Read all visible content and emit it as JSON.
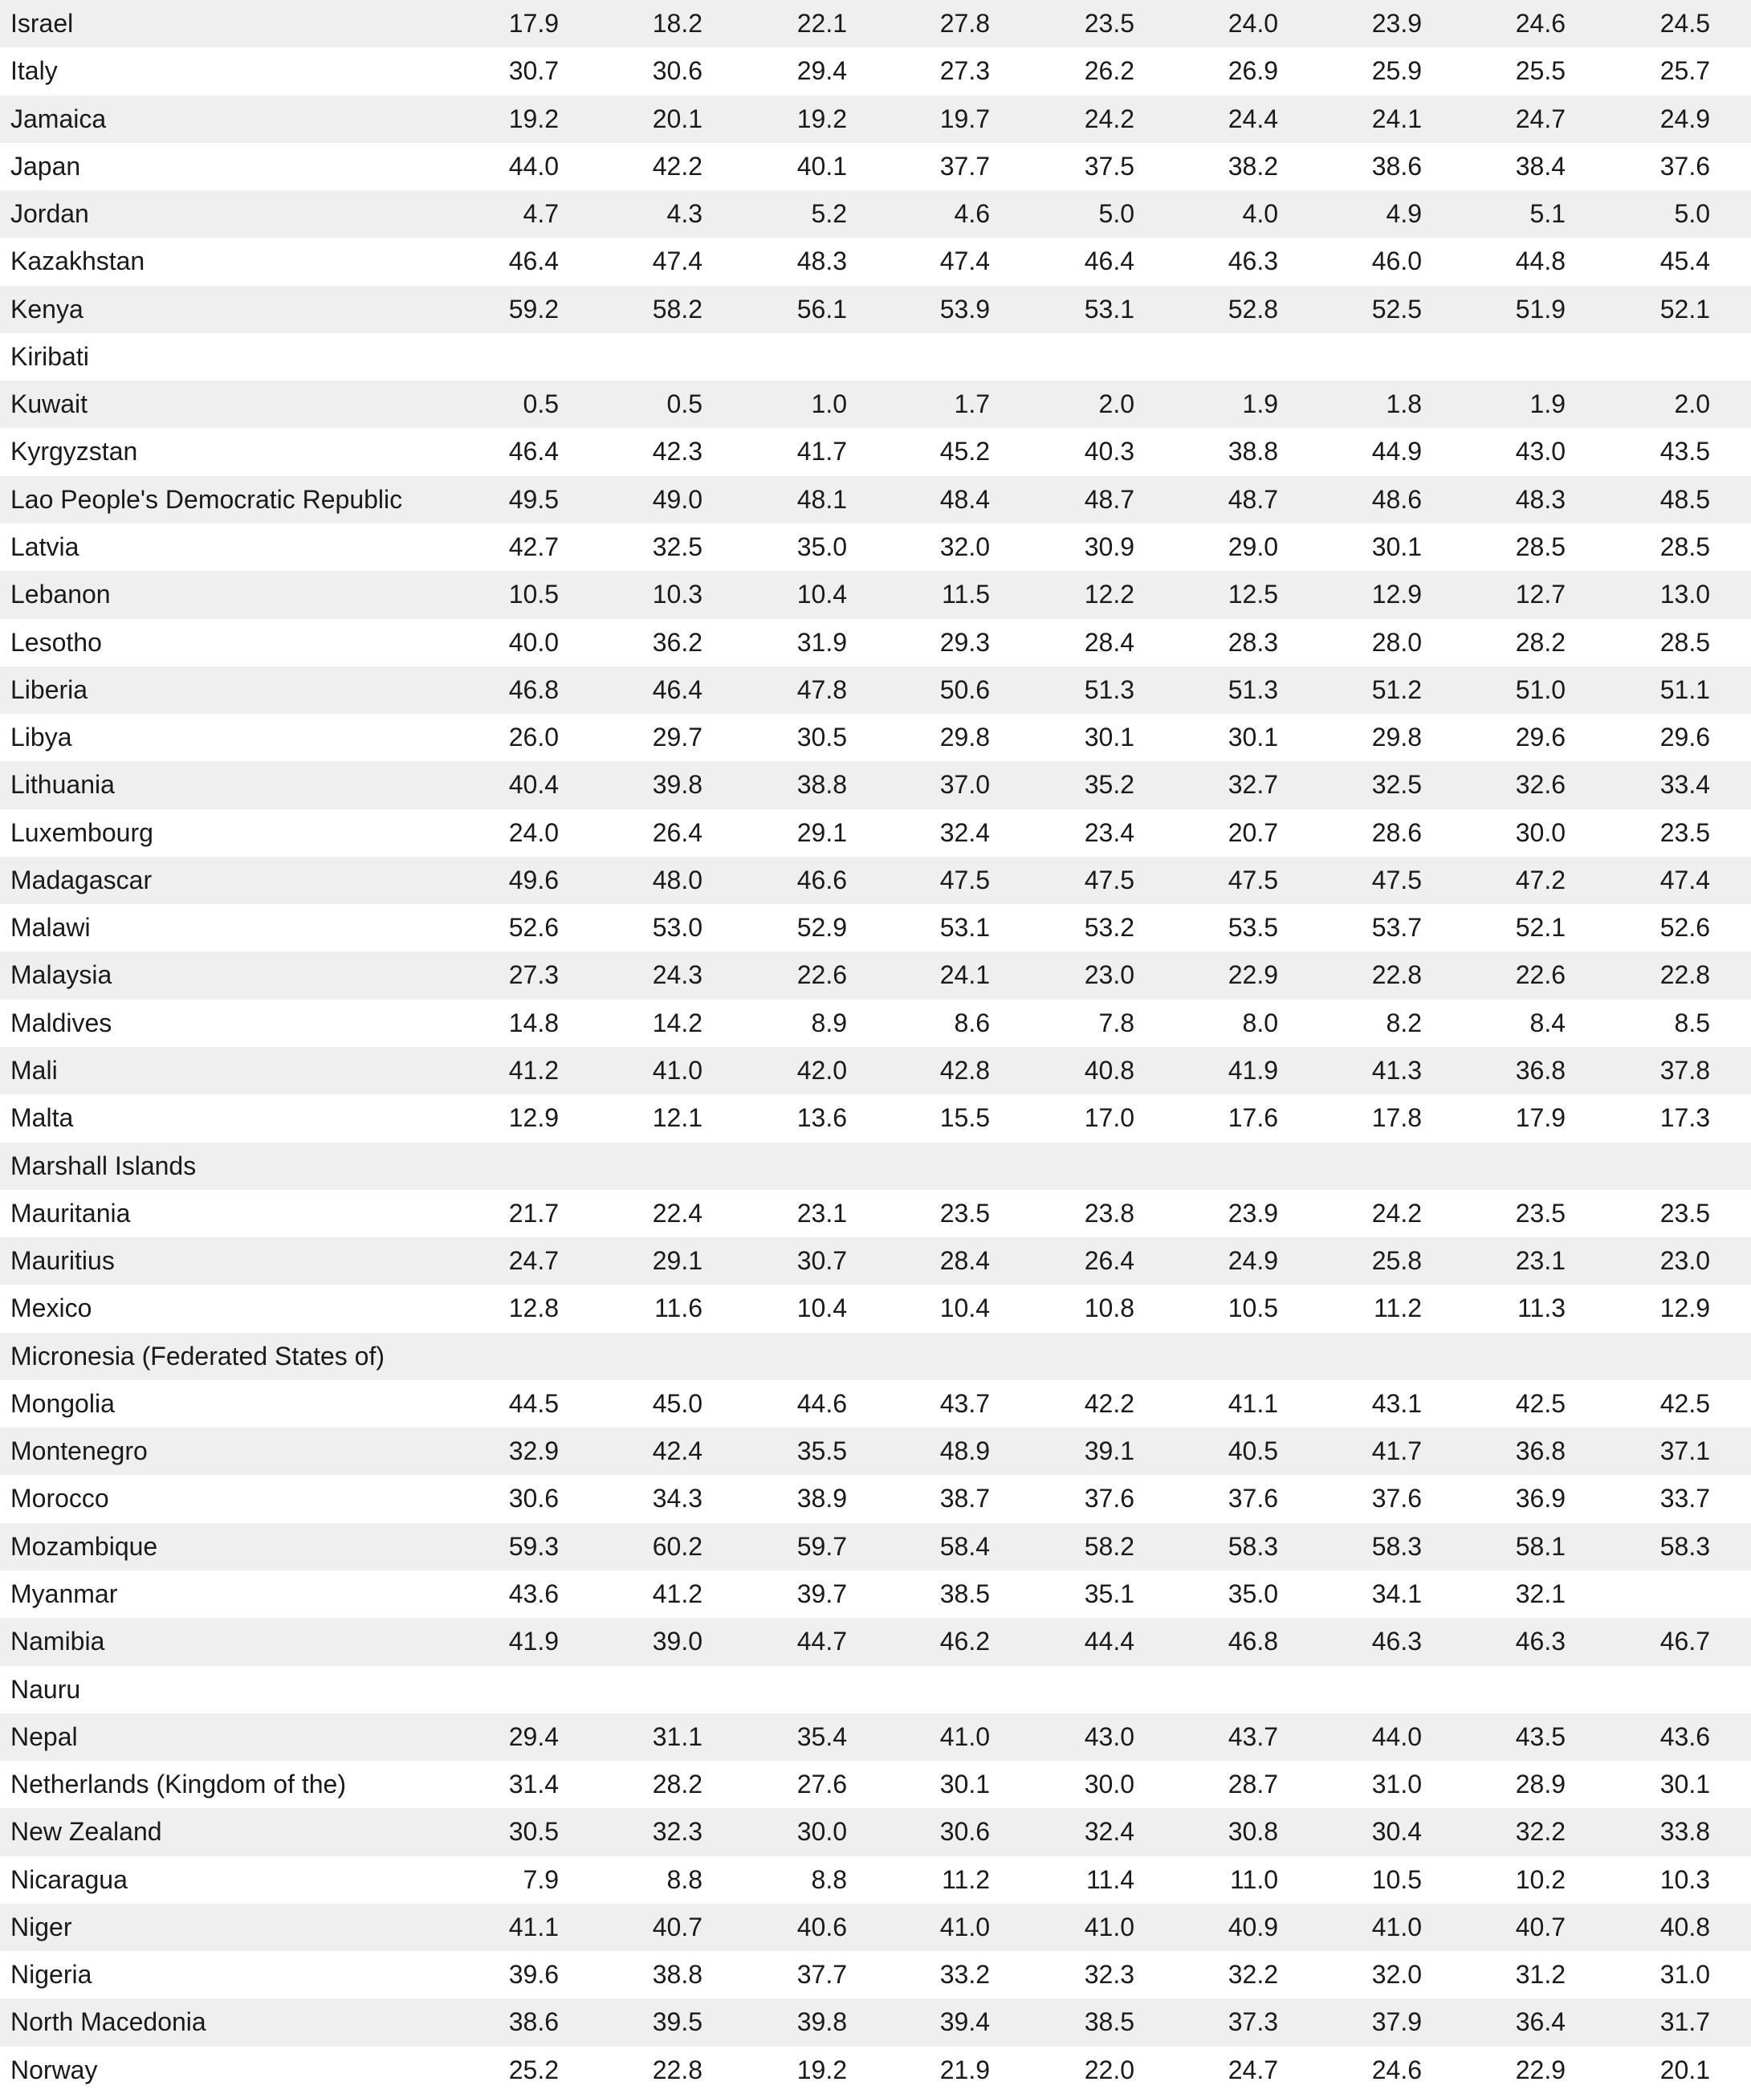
{
  "table": {
    "rows": [
      {
        "name": "Israel",
        "values": [
          17.9,
          18.2,
          22.1,
          27.8,
          23.5,
          24.0,
          23.9,
          24.6,
          24.5
        ]
      },
      {
        "name": "Italy",
        "values": [
          30.7,
          30.6,
          29.4,
          27.3,
          26.2,
          26.9,
          25.9,
          25.5,
          25.7
        ]
      },
      {
        "name": "Jamaica",
        "values": [
          19.2,
          20.1,
          19.2,
          19.7,
          24.2,
          24.4,
          24.1,
          24.7,
          24.9
        ]
      },
      {
        "name": "Japan",
        "values": [
          44.0,
          42.2,
          40.1,
          37.7,
          37.5,
          38.2,
          38.6,
          38.4,
          37.6
        ]
      },
      {
        "name": "Jordan",
        "values": [
          4.7,
          4.3,
          5.2,
          4.6,
          5.0,
          4.0,
          4.9,
          5.1,
          5.0
        ]
      },
      {
        "name": "Kazakhstan",
        "values": [
          46.4,
          47.4,
          48.3,
          47.4,
          46.4,
          46.3,
          46.0,
          44.8,
          45.4
        ]
      },
      {
        "name": "Kenya",
        "values": [
          59.2,
          58.2,
          56.1,
          53.9,
          53.1,
          52.8,
          52.5,
          51.9,
          52.1
        ]
      },
      {
        "name": "Kiribati",
        "values": [
          null,
          null,
          null,
          null,
          null,
          null,
          null,
          null,
          null
        ]
      },
      {
        "name": "Kuwait",
        "values": [
          0.5,
          0.5,
          1.0,
          1.7,
          2.0,
          1.9,
          1.8,
          1.9,
          2.0
        ]
      },
      {
        "name": "Kyrgyzstan",
        "values": [
          46.4,
          42.3,
          41.7,
          45.2,
          40.3,
          38.8,
          44.9,
          43.0,
          43.5
        ]
      },
      {
        "name": "Lao People's Democratic Republic",
        "values": [
          49.5,
          49.0,
          48.1,
          48.4,
          48.7,
          48.7,
          48.6,
          48.3,
          48.5
        ]
      },
      {
        "name": "Latvia",
        "values": [
          42.7,
          32.5,
          35.0,
          32.0,
          30.9,
          29.0,
          30.1,
          28.5,
          28.5
        ]
      },
      {
        "name": "Lebanon",
        "values": [
          10.5,
          10.3,
          10.4,
          11.5,
          12.2,
          12.5,
          12.9,
          12.7,
          13.0
        ]
      },
      {
        "name": "Lesotho",
        "values": [
          40.0,
          36.2,
          31.9,
          29.3,
          28.4,
          28.3,
          28.0,
          28.2,
          28.5
        ]
      },
      {
        "name": "Liberia",
        "values": [
          46.8,
          46.4,
          47.8,
          50.6,
          51.3,
          51.3,
          51.2,
          51.0,
          51.1
        ]
      },
      {
        "name": "Libya",
        "values": [
          26.0,
          29.7,
          30.5,
          29.8,
          30.1,
          30.1,
          29.8,
          29.6,
          29.6
        ]
      },
      {
        "name": "Lithuania",
        "values": [
          40.4,
          39.8,
          38.8,
          37.0,
          35.2,
          32.7,
          32.5,
          32.6,
          33.4
        ]
      },
      {
        "name": "Luxembourg",
        "values": [
          24.0,
          26.4,
          29.1,
          32.4,
          23.4,
          20.7,
          28.6,
          30.0,
          23.5
        ]
      },
      {
        "name": "Madagascar",
        "values": [
          49.6,
          48.0,
          46.6,
          47.5,
          47.5,
          47.5,
          47.5,
          47.2,
          47.4
        ]
      },
      {
        "name": "Malawi",
        "values": [
          52.6,
          53.0,
          52.9,
          53.1,
          53.2,
          53.5,
          53.7,
          52.1,
          52.6
        ]
      },
      {
        "name": "Malaysia",
        "values": [
          27.3,
          24.3,
          22.6,
          24.1,
          23.0,
          22.9,
          22.8,
          22.6,
          22.8
        ]
      },
      {
        "name": "Maldives",
        "values": [
          14.8,
          14.2,
          8.9,
          8.6,
          7.8,
          8.0,
          8.2,
          8.4,
          8.5
        ]
      },
      {
        "name": "Mali",
        "values": [
          41.2,
          41.0,
          42.0,
          42.8,
          40.8,
          41.9,
          41.3,
          36.8,
          37.8
        ]
      },
      {
        "name": "Malta",
        "values": [
          12.9,
          12.1,
          13.6,
          15.5,
          17.0,
          17.6,
          17.8,
          17.9,
          17.3
        ]
      },
      {
        "name": "Marshall Islands",
        "values": [
          null,
          null,
          null,
          null,
          null,
          null,
          null,
          null,
          null
        ]
      },
      {
        "name": "Mauritania",
        "values": [
          21.7,
          22.4,
          23.1,
          23.5,
          23.8,
          23.9,
          24.2,
          23.5,
          23.5
        ]
      },
      {
        "name": "Mauritius",
        "values": [
          24.7,
          29.1,
          30.7,
          28.4,
          26.4,
          24.9,
          25.8,
          23.1,
          23.0
        ]
      },
      {
        "name": "Mexico",
        "values": [
          12.8,
          11.6,
          10.4,
          10.4,
          10.8,
          10.5,
          11.2,
          11.3,
          12.9
        ]
      },
      {
        "name": "Micronesia (Federated States of)",
        "values": [
          null,
          null,
          null,
          null,
          null,
          null,
          null,
          null,
          null
        ]
      },
      {
        "name": "Mongolia",
        "values": [
          44.5,
          45.0,
          44.6,
          43.7,
          42.2,
          41.1,
          43.1,
          42.5,
          42.5
        ]
      },
      {
        "name": "Montenegro",
        "values": [
          32.9,
          42.4,
          35.5,
          48.9,
          39.1,
          40.5,
          41.7,
          36.8,
          37.1
        ]
      },
      {
        "name": "Morocco",
        "values": [
          30.6,
          34.3,
          38.9,
          38.7,
          37.6,
          37.6,
          37.6,
          36.9,
          33.7
        ]
      },
      {
        "name": "Mozambique",
        "values": [
          59.3,
          60.2,
          59.7,
          58.4,
          58.2,
          58.3,
          58.3,
          58.1,
          58.3
        ]
      },
      {
        "name": "Myanmar",
        "values": [
          43.6,
          41.2,
          39.7,
          38.5,
          35.1,
          35.0,
          34.1,
          32.1,
          null
        ]
      },
      {
        "name": "Namibia",
        "values": [
          41.9,
          39.0,
          44.7,
          46.2,
          44.4,
          46.8,
          46.3,
          46.3,
          46.7
        ]
      },
      {
        "name": "Nauru",
        "values": [
          null,
          null,
          null,
          null,
          null,
          null,
          null,
          null,
          null
        ]
      },
      {
        "name": "Nepal",
        "values": [
          29.4,
          31.1,
          35.4,
          41.0,
          43.0,
          43.7,
          44.0,
          43.5,
          43.6
        ]
      },
      {
        "name": "Netherlands (Kingdom of the)",
        "values": [
          31.4,
          28.2,
          27.6,
          30.1,
          30.0,
          28.7,
          31.0,
          28.9,
          30.1
        ]
      },
      {
        "name": "New Zealand",
        "values": [
          30.5,
          32.3,
          30.0,
          30.6,
          32.4,
          30.8,
          30.4,
          32.2,
          33.8
        ]
      },
      {
        "name": "Nicaragua",
        "values": [
          7.9,
          8.8,
          8.8,
          11.2,
          11.4,
          11.0,
          10.5,
          10.2,
          10.3
        ]
      },
      {
        "name": "Niger",
        "values": [
          41.1,
          40.7,
          40.6,
          41.0,
          41.0,
          40.9,
          41.0,
          40.7,
          40.8
        ]
      },
      {
        "name": "Nigeria",
        "values": [
          39.6,
          38.8,
          37.7,
          33.2,
          32.3,
          32.2,
          32.0,
          31.2,
          31.0
        ]
      },
      {
        "name": "North Macedonia",
        "values": [
          38.6,
          39.5,
          39.8,
          39.4,
          38.5,
          37.3,
          37.9,
          36.4,
          31.7
        ]
      },
      {
        "name": "Norway",
        "values": [
          25.2,
          22.8,
          19.2,
          21.9,
          22.0,
          24.7,
          24.6,
          22.9,
          20.1
        ]
      }
    ]
  }
}
